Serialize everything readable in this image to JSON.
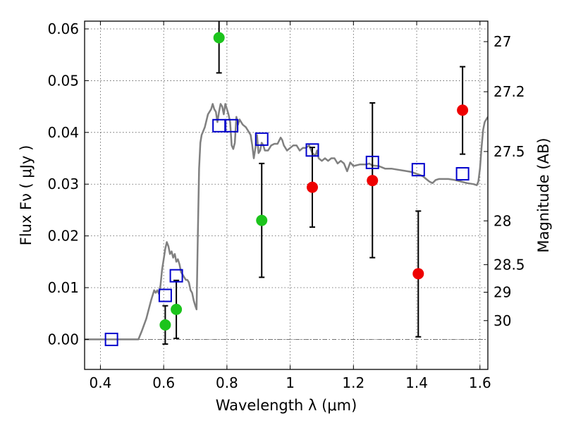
{
  "chart_data": {
    "type": "scatter",
    "xlabel": "Wavelength  λ (μm)",
    "ylabel": "Flux  Fν  ( μJy )",
    "ylabel_right": "Magnitude (AB)",
    "xlim": [
      0.35,
      1.625
    ],
    "ylim": [
      -0.0058,
      0.0615
    ],
    "x_ticks": [
      0.4,
      0.6,
      0.8,
      1.0,
      1.2,
      1.4,
      1.6
    ],
    "x_tick_labels": [
      "0.4",
      "0.6",
      "0.8",
      "1",
      "1.2",
      "1.4",
      "1.6"
    ],
    "y_ticks": [
      0.0,
      0.01,
      0.02,
      0.03,
      0.04,
      0.05,
      0.06
    ],
    "y_tick_labels": [
      "0.00",
      "0.01",
      "0.02",
      "0.03",
      "0.04",
      "0.05",
      "0.06"
    ],
    "mag_ticks": [
      27,
      27.2,
      27.5,
      28,
      28.5,
      29,
      30
    ],
    "mag_tick_labels": [
      "27",
      "27.2",
      "27.5",
      "28",
      "28.5",
      "29",
      "30"
    ],
    "grid": true,
    "colors": {
      "model": "#808080",
      "model_points": "#0000cc",
      "green": "#1cc41c",
      "red": "#ee0000",
      "errorbar": "#000000"
    },
    "series": [
      {
        "type": "line",
        "points": [
          [
            0.35,
            0.0
          ],
          [
            0.52,
            0.0
          ],
          [
            0.53,
            0.0015
          ],
          [
            0.545,
            0.004
          ],
          [
            0.56,
            0.0075
          ],
          [
            0.57,
            0.0095
          ],
          [
            0.575,
            0.009
          ],
          [
            0.58,
            0.0095
          ],
          [
            0.585,
            0.0088
          ],
          [
            0.59,
            0.0105
          ],
          [
            0.595,
            0.0135
          ],
          [
            0.6,
            0.0155
          ],
          [
            0.605,
            0.0175
          ],
          [
            0.61,
            0.0188
          ],
          [
            0.615,
            0.018
          ],
          [
            0.62,
            0.0165
          ],
          [
            0.625,
            0.017
          ],
          [
            0.63,
            0.0158
          ],
          [
            0.635,
            0.0165
          ],
          [
            0.64,
            0.015
          ],
          [
            0.645,
            0.0155
          ],
          [
            0.65,
            0.0145
          ],
          [
            0.655,
            0.013
          ],
          [
            0.66,
            0.0125
          ],
          [
            0.665,
            0.012
          ],
          [
            0.67,
            0.0115
          ],
          [
            0.675,
            0.0115
          ],
          [
            0.68,
            0.011
          ],
          [
            0.685,
            0.0095
          ],
          [
            0.69,
            0.009
          ],
          [
            0.695,
            0.0075
          ],
          [
            0.7,
            0.0065
          ],
          [
            0.704,
            0.0058
          ],
          [
            0.708,
            0.02
          ],
          [
            0.712,
            0.033
          ],
          [
            0.716,
            0.038
          ],
          [
            0.72,
            0.0395
          ],
          [
            0.73,
            0.041
          ],
          [
            0.74,
            0.0435
          ],
          [
            0.75,
            0.0445
          ],
          [
            0.755,
            0.0455
          ],
          [
            0.76,
            0.0445
          ],
          [
            0.765,
            0.044
          ],
          [
            0.77,
            0.042
          ],
          [
            0.775,
            0.044
          ],
          [
            0.78,
            0.0455
          ],
          [
            0.785,
            0.045
          ],
          [
            0.79,
            0.0435
          ],
          [
            0.795,
            0.0455
          ],
          [
            0.8,
            0.0445
          ],
          [
            0.805,
            0.0435
          ],
          [
            0.81,
            0.042
          ],
          [
            0.815,
            0.0375
          ],
          [
            0.82,
            0.0368
          ],
          [
            0.825,
            0.038
          ],
          [
            0.83,
            0.043
          ],
          [
            0.835,
            0.0415
          ],
          [
            0.84,
            0.0425
          ],
          [
            0.85,
            0.0415
          ],
          [
            0.86,
            0.041
          ],
          [
            0.87,
            0.04
          ],
          [
            0.875,
            0.0395
          ],
          [
            0.88,
            0.0375
          ],
          [
            0.885,
            0.035
          ],
          [
            0.89,
            0.037
          ],
          [
            0.895,
            0.0395
          ],
          [
            0.9,
            0.036
          ],
          [
            0.905,
            0.0365
          ],
          [
            0.91,
            0.038
          ],
          [
            0.915,
            0.0375
          ],
          [
            0.92,
            0.0365
          ],
          [
            0.93,
            0.0365
          ],
          [
            0.94,
            0.0375
          ],
          [
            0.95,
            0.0378
          ],
          [
            0.96,
            0.0378
          ],
          [
            0.97,
            0.039
          ],
          [
            0.975,
            0.0385
          ],
          [
            0.98,
            0.0375
          ],
          [
            0.99,
            0.0365
          ],
          [
            1.0,
            0.037
          ],
          [
            1.01,
            0.0375
          ],
          [
            1.02,
            0.0375
          ],
          [
            1.03,
            0.0365
          ],
          [
            1.04,
            0.037
          ],
          [
            1.05,
            0.037
          ],
          [
            1.06,
            0.0375
          ],
          [
            1.07,
            0.036
          ],
          [
            1.08,
            0.0355
          ],
          [
            1.085,
            0.0365
          ],
          [
            1.09,
            0.035
          ],
          [
            1.1,
            0.0345
          ],
          [
            1.11,
            0.035
          ],
          [
            1.12,
            0.0345
          ],
          [
            1.13,
            0.035
          ],
          [
            1.14,
            0.035
          ],
          [
            1.15,
            0.034
          ],
          [
            1.16,
            0.0345
          ],
          [
            1.17,
            0.034
          ],
          [
            1.18,
            0.0325
          ],
          [
            1.19,
            0.0342
          ],
          [
            1.2,
            0.0335
          ],
          [
            1.22,
            0.0338
          ],
          [
            1.24,
            0.0338
          ],
          [
            1.25,
            0.034
          ],
          [
            1.26,
            0.0336
          ],
          [
            1.28,
            0.0335
          ],
          [
            1.3,
            0.033
          ],
          [
            1.32,
            0.033
          ],
          [
            1.34,
            0.0328
          ],
          [
            1.36,
            0.0326
          ],
          [
            1.38,
            0.0324
          ],
          [
            1.39,
            0.0322
          ],
          [
            1.4,
            0.032
          ],
          [
            1.41,
            0.0318
          ],
          [
            1.42,
            0.0315
          ],
          [
            1.43,
            0.031
          ],
          [
            1.44,
            0.0305
          ],
          [
            1.45,
            0.0302
          ],
          [
            1.46,
            0.0308
          ],
          [
            1.47,
            0.031
          ],
          [
            1.48,
            0.031
          ],
          [
            1.5,
            0.031
          ],
          [
            1.52,
            0.0308
          ],
          [
            1.54,
            0.0305
          ],
          [
            1.56,
            0.0302
          ],
          [
            1.58,
            0.03
          ],
          [
            1.59,
            0.0298
          ],
          [
            1.595,
            0.0305
          ],
          [
            1.6,
            0.033
          ],
          [
            1.605,
            0.037
          ],
          [
            1.61,
            0.0405
          ],
          [
            1.615,
            0.042
          ],
          [
            1.625,
            0.043
          ]
        ]
      },
      {
        "type": "model-points",
        "marker": "open-square",
        "points": [
          [
            0.435,
            0.0
          ],
          [
            0.605,
            0.0085
          ],
          [
            0.64,
            0.0123
          ],
          [
            0.775,
            0.0413
          ],
          [
            0.815,
            0.0413
          ],
          [
            0.91,
            0.0387
          ],
          [
            1.07,
            0.0366
          ],
          [
            1.26,
            0.0342
          ],
          [
            1.405,
            0.0328
          ],
          [
            1.545,
            0.032
          ]
        ]
      },
      {
        "type": "observed",
        "marker": "filled-circle",
        "color_key": "green",
        "points": [
          {
            "x": 0.605,
            "y": 0.0028,
            "err_low": 0.0037,
            "err_high": 0.0037
          },
          {
            "x": 0.64,
            "y": 0.0058,
            "err_low": 0.0056,
            "err_high": 0.0056
          },
          {
            "x": 0.775,
            "y": 0.0583,
            "err_low": 0.0068,
            "err_high": 0.004
          },
          {
            "x": 0.91,
            "y": 0.023,
            "err_low": 0.011,
            "err_high": 0.011
          }
        ]
      },
      {
        "type": "observed",
        "marker": "filled-circle",
        "color_key": "red",
        "points": [
          {
            "x": 1.07,
            "y": 0.0294,
            "err_low": 0.0077,
            "err_high": 0.0077
          },
          {
            "x": 1.26,
            "y": 0.0307,
            "err_low": 0.0149,
            "err_high": 0.015
          },
          {
            "x": 1.405,
            "y": 0.0127,
            "err_low": 0.0122,
            "err_high": 0.0121
          },
          {
            "x": 1.545,
            "y": 0.0443,
            "err_low": 0.0085,
            "err_high": 0.0084
          }
        ]
      }
    ]
  }
}
